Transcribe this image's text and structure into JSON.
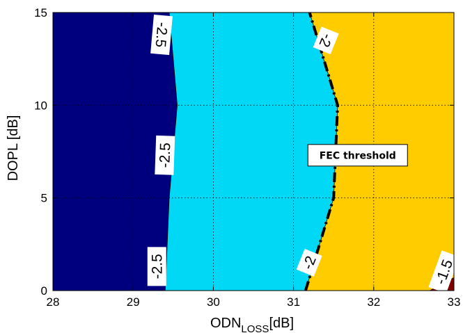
{
  "chart_data": {
    "type": "contour",
    "title": "",
    "xlabel": "ODN",
    "xlabel_subscript": "LOSS",
    "xlabel_unit": "[dB]",
    "ylabel": "DOPL [dB]",
    "xlim": [
      28,
      33
    ],
    "ylim": [
      0,
      15
    ],
    "x_ticks": [
      "28",
      "29",
      "30",
      "31",
      "32",
      "33"
    ],
    "y_ticks": [
      "0",
      "5",
      "10",
      "15"
    ],
    "grid": true,
    "regions": [
      {
        "level": "< -2.5",
        "color": "#00007f"
      },
      {
        "level": "-2.5 to -2",
        "color": "#00d8f5"
      },
      {
        "level": "-2 to -1.5",
        "color": "#ffcc00"
      },
      {
        "level": "> -1.5",
        "color": "#7f0000"
      }
    ],
    "contours": [
      {
        "level": -2.5,
        "points": [
          [
            29.4,
            0
          ],
          [
            29.45,
            5
          ],
          [
            29.55,
            10
          ],
          [
            29.45,
            15
          ]
        ]
      },
      {
        "level": -2,
        "points": [
          [
            31.15,
            0
          ],
          [
            31.5,
            5
          ],
          [
            31.55,
            10
          ],
          [
            31.2,
            15
          ]
        ]
      },
      {
        "level": -1.5,
        "points": [
          [
            32.7,
            0
          ],
          [
            33.0,
            0.7
          ]
        ]
      }
    ],
    "contour_labels": [
      {
        "text": "-2.5",
        "x": 29.35,
        "y": 13.8,
        "angle": 95
      },
      {
        "text": "-2.5",
        "x": 29.4,
        "y": 7.3,
        "angle": -88
      },
      {
        "text": "-2.5",
        "x": 29.3,
        "y": 1.3,
        "angle": -90
      },
      {
        "text": "-2",
        "x": 31.4,
        "y": 13.5,
        "angle": 112
      },
      {
        "text": "-2",
        "x": 31.2,
        "y": 1.5,
        "angle": -68
      },
      {
        "text": "-1.5",
        "x": 32.88,
        "y": 1.0,
        "angle": -70
      }
    ],
    "annotations": [
      {
        "text": "FEC threshold",
        "x": 31.8,
        "y": 7.3
      }
    ],
    "threshold_line": {
      "level": -2,
      "style": "dash-dot",
      "color": "#000000"
    }
  }
}
